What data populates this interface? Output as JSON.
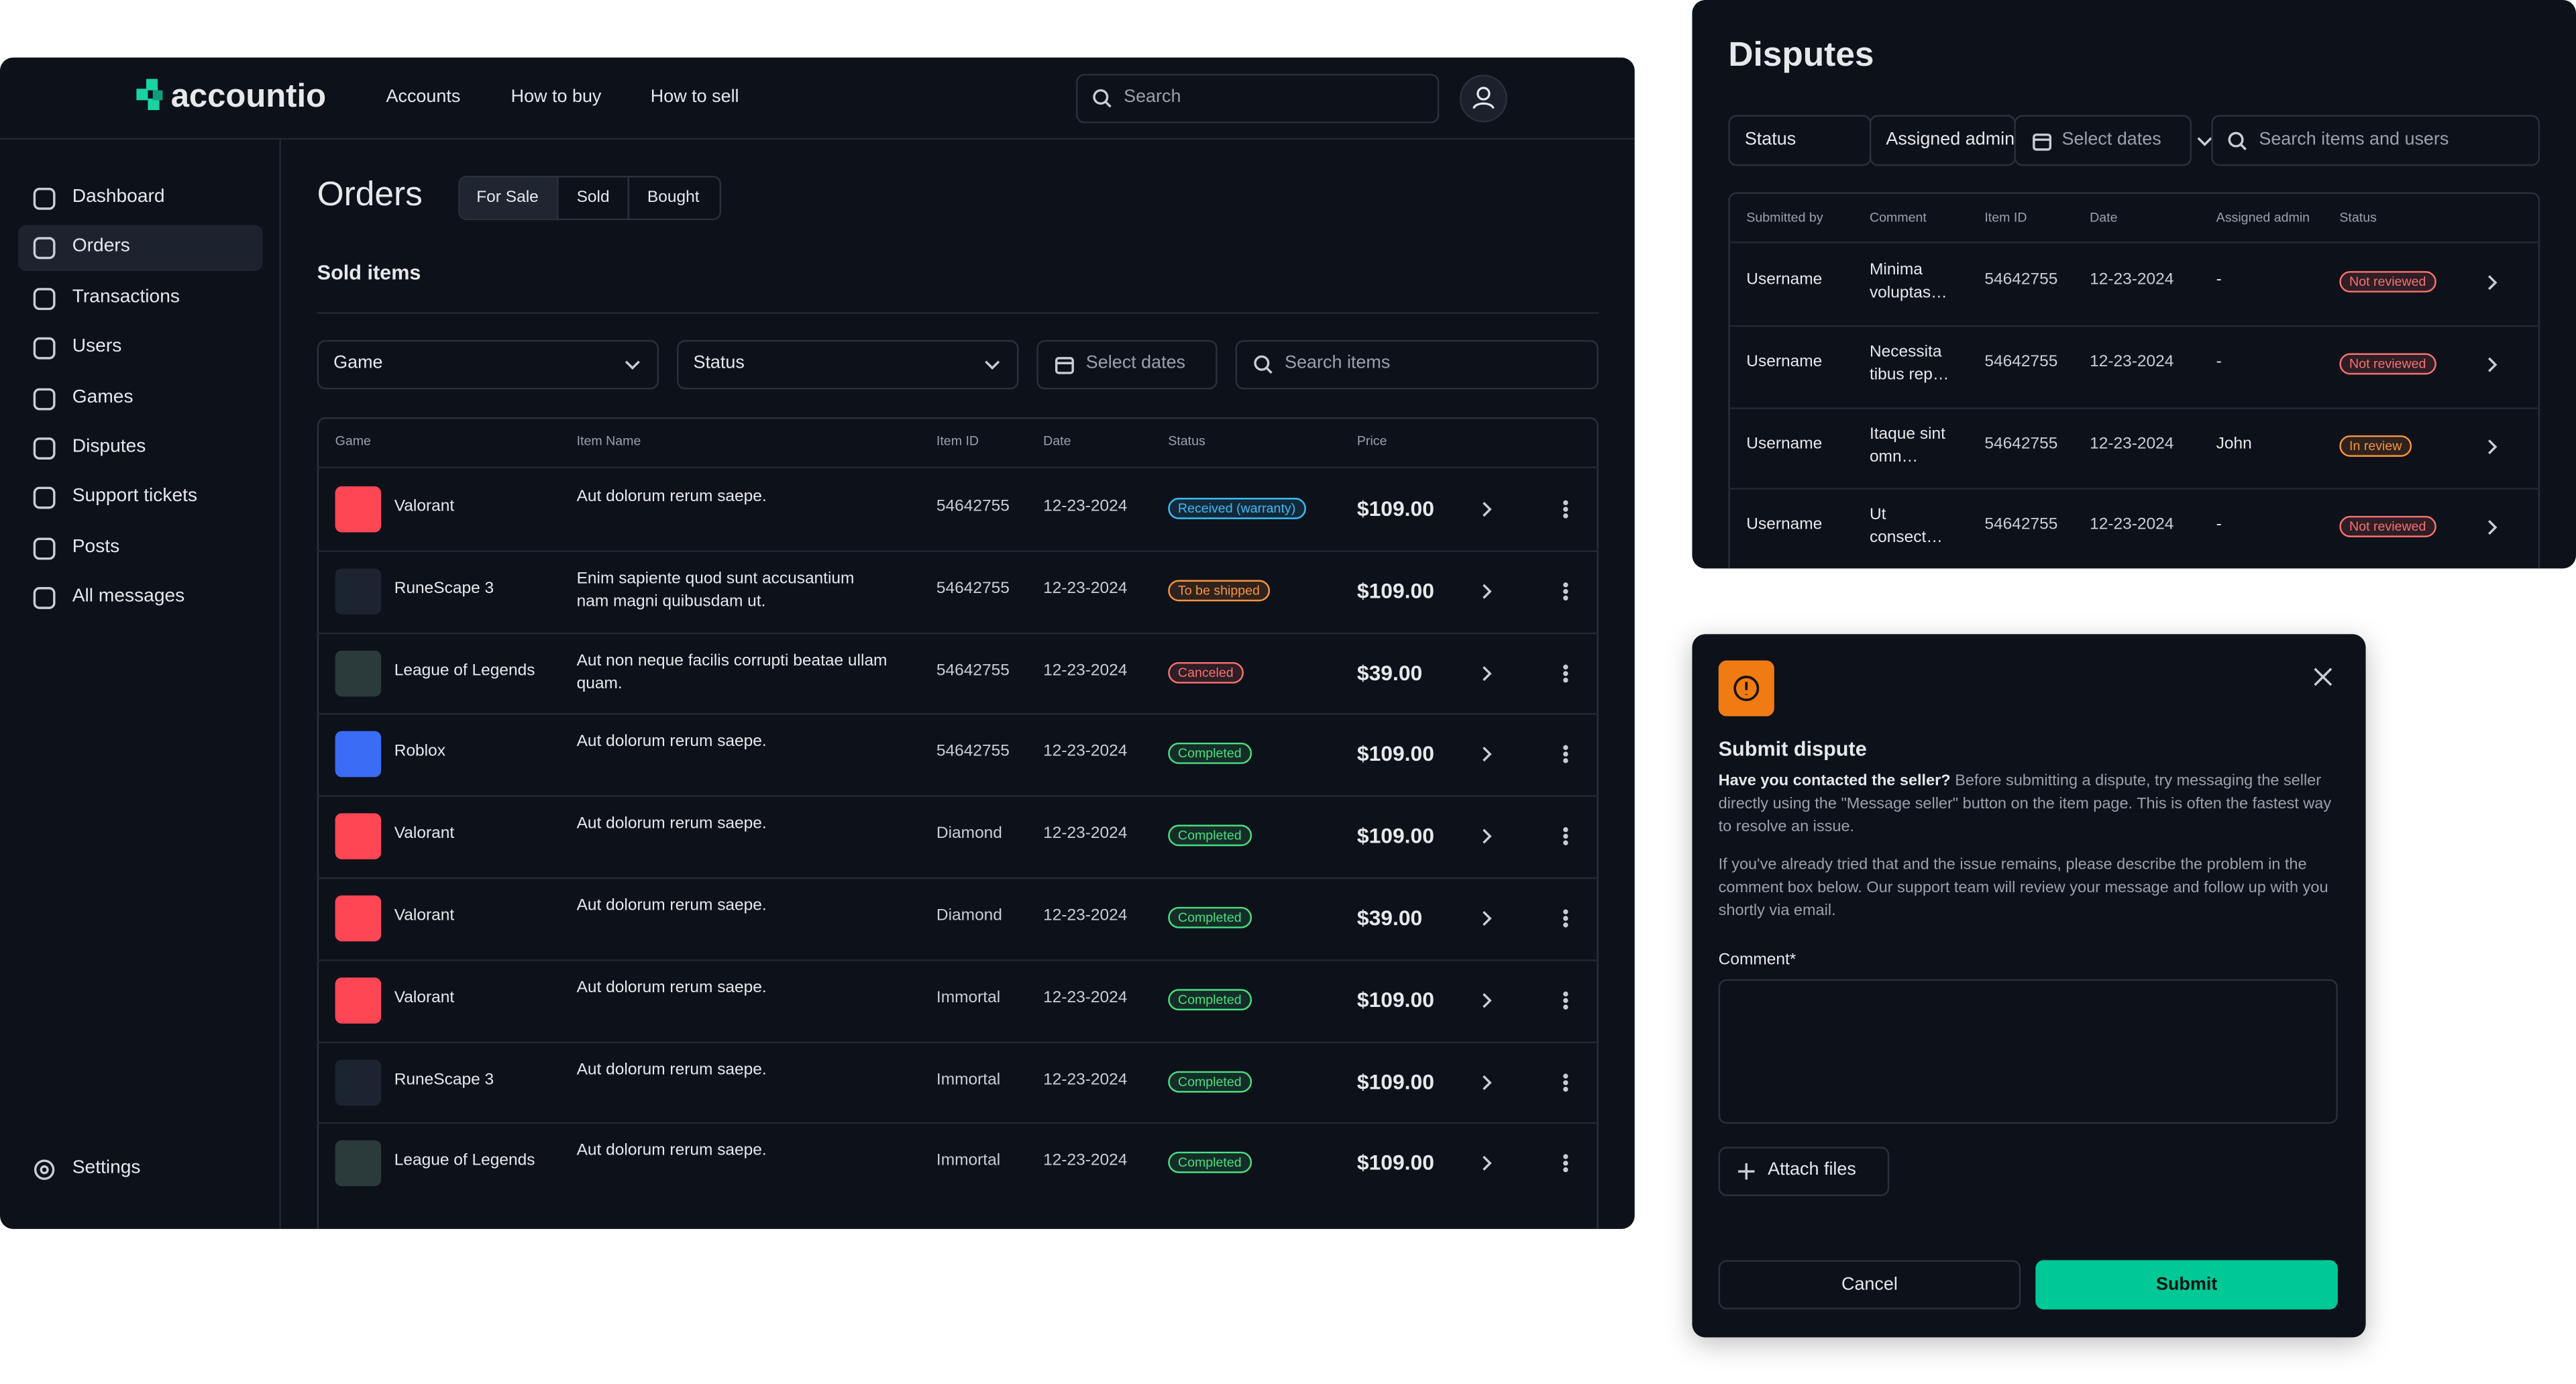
{
  "app": {
    "logo": "accountio",
    "nav": [
      "Accounts",
      "How to buy",
      "How to sell"
    ],
    "search": "Search",
    "sidebar": [
      "Dashboard",
      "Orders",
      "Transactions",
      "Users",
      "Games",
      "Disputes",
      "Support tickets",
      "Posts",
      "All messages"
    ],
    "settings": "Settings",
    "title": "Orders",
    "tabs": [
      "For Sale",
      "Sold",
      "Bought"
    ],
    "section": "Sold items",
    "filters": [
      "Game",
      "Status",
      "Select dates",
      "Search items"
    ],
    "table": {
      "headers": [
        "Game",
        "Item Name",
        "Item ID",
        "Date",
        "Status",
        "Price"
      ],
      "rows": [
        {
          "game": "Valorant",
          "icon_color": "#ff4655",
          "item": "Aut dolorum rerum saepe.",
          "item_id": "54642755",
          "date": "12-23-2024",
          "status": "Received (warranty)",
          "status_color": "#38bdf8",
          "price": "$109.00"
        },
        {
          "game": "RuneScape 3",
          "icon_color": "#1b2430",
          "item": "Enim sapiente quod sunt accusantium nam magni quibusdam ut.",
          "item_id": "54642755",
          "date": "12-23-2024",
          "status": "To be shipped",
          "status_color": "#fb923c",
          "price": "$109.00"
        },
        {
          "game": "League of Legends",
          "icon_color": "#2b3a3a",
          "item": "Aut non neque facilis corrupti beatae ullam quam.",
          "item_id": "54642755",
          "date": "12-23-2024",
          "status": "Canceled",
          "status_color": "#f87171",
          "price": "$39.00"
        },
        {
          "game": "Roblox",
          "icon_color": "#3b6cf5",
          "item": "Aut dolorum rerum saepe.",
          "item_id": "54642755",
          "date": "12-23-2024",
          "status": "Completed",
          "status_color": "#4ade80",
          "price": "$109.00"
        },
        {
          "game": "Valorant",
          "icon_color": "#ff4655",
          "item": "Aut dolorum rerum saepe.",
          "item_id": "Diamond",
          "date": "12-23-2024",
          "status": "Completed",
          "status_color": "#4ade80",
          "price": "$109.00"
        },
        {
          "game": "Valorant",
          "icon_color": "#ff4655",
          "item": "Aut dolorum rerum saepe.",
          "item_id": "Diamond",
          "date": "12-23-2024",
          "status": "Completed",
          "status_color": "#4ade80",
          "price": "$39.00"
        },
        {
          "game": "Valorant",
          "icon_color": "#ff4655",
          "item": "Aut dolorum rerum saepe.",
          "item_id": "Immortal",
          "date": "12-23-2024",
          "status": "Completed",
          "status_color": "#4ade80",
          "price": "$109.00"
        },
        {
          "game": "RuneScape 3",
          "icon_color": "#1b2430",
          "item": "Aut dolorum rerum saepe.",
          "item_id": "Immortal",
          "date": "12-23-2024",
          "status": "Completed",
          "status_color": "#4ade80",
          "price": "$109.00"
        },
        {
          "game": "League of Legends",
          "icon_color": "#2b3a3a",
          "item": "Aut dolorum rerum saepe.",
          "item_id": "Immortal",
          "date": "12-23-2024",
          "status": "Completed",
          "status_color": "#4ade80",
          "price": "$109.00"
        }
      ]
    }
  },
  "disputes": {
    "title": "Disputes",
    "filters": [
      "Status",
      "Assigned admin",
      "Select dates",
      "Search items and users"
    ],
    "headers": [
      "Submitted by",
      "Comment",
      "Item ID",
      "Date",
      "Assigned admin",
      "Status"
    ],
    "rows": [
      {
        "user": "Username",
        "comment": "Minima voluptas…",
        "item_id": "54642755",
        "date": "12-23-2024",
        "admin": "-",
        "status": "Not reviewed",
        "status_color": "#f87171"
      },
      {
        "user": "Username",
        "comment": "Necessita tibus rep…",
        "item_id": "54642755",
        "date": "12-23-2024",
        "admin": "-",
        "status": "Not reviewed",
        "status_color": "#f87171"
      },
      {
        "user": "Username",
        "comment": "Itaque sint omn…",
        "item_id": "54642755",
        "date": "12-23-2024",
        "admin": "John",
        "status": "In review",
        "status_color": "#fb923c"
      },
      {
        "user": "Username",
        "comment": "Ut consect…",
        "item_id": "54642755",
        "date": "12-23-2024",
        "admin": "-",
        "status": "Not reviewed",
        "status_color": "#f87171"
      }
    ]
  },
  "modal": {
    "title": "Submit dispute",
    "lead": "Have you contacted the seller?",
    "text": " Before submitting a dispute, try messaging the seller directly using the \"Message seller\" button on the item page. This is often the fastest way to resolve an issue.",
    "text2": "If you've already tried that and the issue remains, please describe the problem in the comment box below. Our support team will review your message and follow up with you shortly via email.",
    "comment_label": "Comment*",
    "attach": "Attach files",
    "cancel": "Cancel",
    "submit": "Submit"
  }
}
